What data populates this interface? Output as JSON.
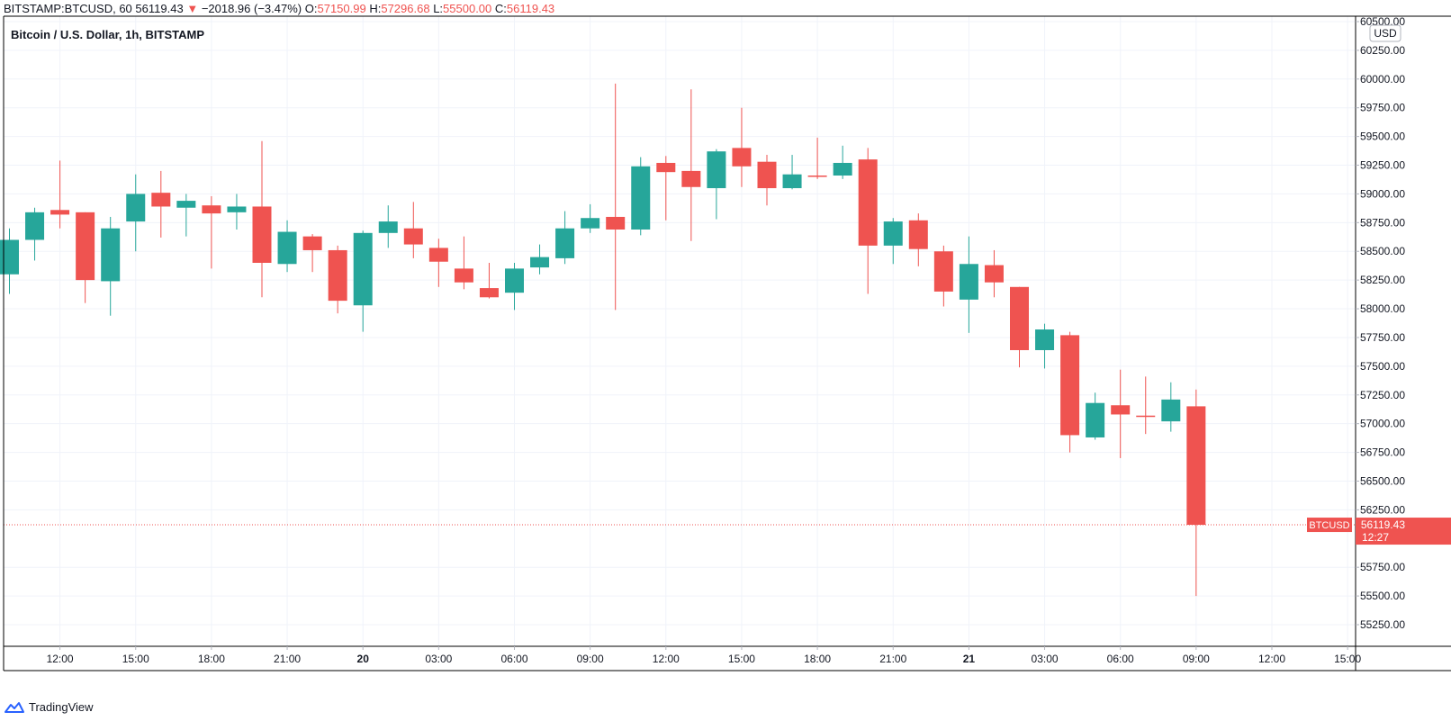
{
  "header": {
    "symbol": "BITSTAMP:BTCUSD, 60",
    "last": "56119.43",
    "change_arrow": "▼",
    "change": "−2018.96 (−3.47%)",
    "o_label": "O:",
    "o_value": "57150.99",
    "h_label": "H:",
    "h_value": "57296.68",
    "l_label": "L:",
    "l_value": "55500.00",
    "c_label": "C:",
    "c_value": "56119.43"
  },
  "subtitle": "Bitcoin / U.S. Dollar, 1h, BITSTAMP",
  "currency_label": "USD",
  "price_tag": {
    "symbol": "BTCUSD",
    "price": "56119.43",
    "countdown": "12:27"
  },
  "brand": "TradingView",
  "colors": {
    "up": "#26a69a",
    "down": "#ef5350",
    "grid": "#f0f3fa",
    "axis_text": "#131722",
    "last_price_line": "#ef5350"
  },
  "chart_data": {
    "type": "candlestick",
    "series": [
      {
        "name": "BTCUSD",
        "interval": "1h",
        "start_time": "19 10:00",
        "ohlc": [
          [
            58300,
            58700,
            58130,
            58600
          ],
          [
            58600,
            58880,
            58420,
            58840
          ],
          [
            58860,
            59290,
            58700,
            58820
          ],
          [
            58840,
            58840,
            58050,
            58250
          ],
          [
            58240,
            58800,
            57940,
            58700
          ],
          [
            58760,
            59170,
            58500,
            59000
          ],
          [
            59010,
            59200,
            58620,
            58890
          ],
          [
            58880,
            59000,
            58630,
            58940
          ],
          [
            58900,
            58980,
            58350,
            58830
          ],
          [
            58840,
            59000,
            58690,
            58890
          ],
          [
            58890,
            59460,
            58100,
            58400
          ],
          [
            58390,
            58770,
            58320,
            58670
          ],
          [
            58630,
            58650,
            58320,
            58510
          ],
          [
            58510,
            58550,
            57960,
            58070
          ],
          [
            58030,
            58680,
            57800,
            58660
          ],
          [
            58660,
            58900,
            58530,
            58760
          ],
          [
            58700,
            58930,
            58440,
            58560
          ],
          [
            58530,
            58610,
            58190,
            58410
          ],
          [
            58350,
            58630,
            58170,
            58230
          ],
          [
            58180,
            58400,
            58090,
            58100
          ],
          [
            58140,
            58400,
            57990,
            58350
          ],
          [
            58360,
            58560,
            58300,
            58450
          ],
          [
            58440,
            58850,
            58390,
            58700
          ],
          [
            58700,
            58910,
            58660,
            58790
          ],
          [
            58800,
            59960,
            57990,
            58690
          ],
          [
            58690,
            59320,
            58640,
            59240
          ],
          [
            59270,
            59330,
            58770,
            59190
          ],
          [
            59200,
            59910,
            58590,
            59060
          ],
          [
            59050,
            59390,
            58780,
            59370
          ],
          [
            59400,
            59750,
            59060,
            59240
          ],
          [
            59280,
            59340,
            58900,
            59050
          ],
          [
            59050,
            59340,
            59040,
            59170
          ],
          [
            59160,
            59490,
            59130,
            59150
          ],
          [
            59160,
            59420,
            59130,
            59270
          ],
          [
            59300,
            59400,
            58130,
            58550
          ],
          [
            58550,
            58790,
            58390,
            58760
          ],
          [
            58770,
            58830,
            58370,
            58520
          ],
          [
            58500,
            58550,
            58020,
            58150
          ],
          [
            58080,
            58630,
            57790,
            58390
          ],
          [
            58380,
            58510,
            58100,
            58230
          ],
          [
            58190,
            58190,
            57490,
            57640
          ],
          [
            57640,
            57870,
            57480,
            57820
          ],
          [
            57770,
            57800,
            56750,
            56900
          ],
          [
            56880,
            57270,
            56860,
            57180
          ],
          [
            57160,
            57470,
            56700,
            57080
          ],
          [
            57070,
            57410,
            56910,
            57060
          ],
          [
            57020,
            57360,
            56930,
            57210
          ],
          [
            57150.99,
            57296.68,
            55500,
            56119.43
          ]
        ]
      }
    ],
    "x_ticks": [
      "12:00",
      "15:00",
      "18:00",
      "21:00",
      "20",
      "03:00",
      "06:00",
      "09:00",
      "12:00",
      "15:00",
      "18:00",
      "21:00",
      "21",
      "03:00",
      "06:00",
      "09:00",
      "12:00",
      "15:00"
    ],
    "x_ticks_bold": [
      "20",
      "21"
    ],
    "y_ticks": [
      "55250.00",
      "55500.00",
      "55750.00",
      "56250.00",
      "56500.00",
      "56750.00",
      "57000.00",
      "57250.00",
      "57500.00",
      "57750.00",
      "58000.00",
      "58250.00",
      "58500.00",
      "58750.00",
      "59000.00",
      "59250.00",
      "59500.00",
      "59750.00",
      "60000.00",
      "60250.00",
      "60500.00"
    ],
    "ylim": [
      55050,
      60530
    ],
    "last_price": 56119.43,
    "grid": true,
    "y_axis_position": "right"
  }
}
